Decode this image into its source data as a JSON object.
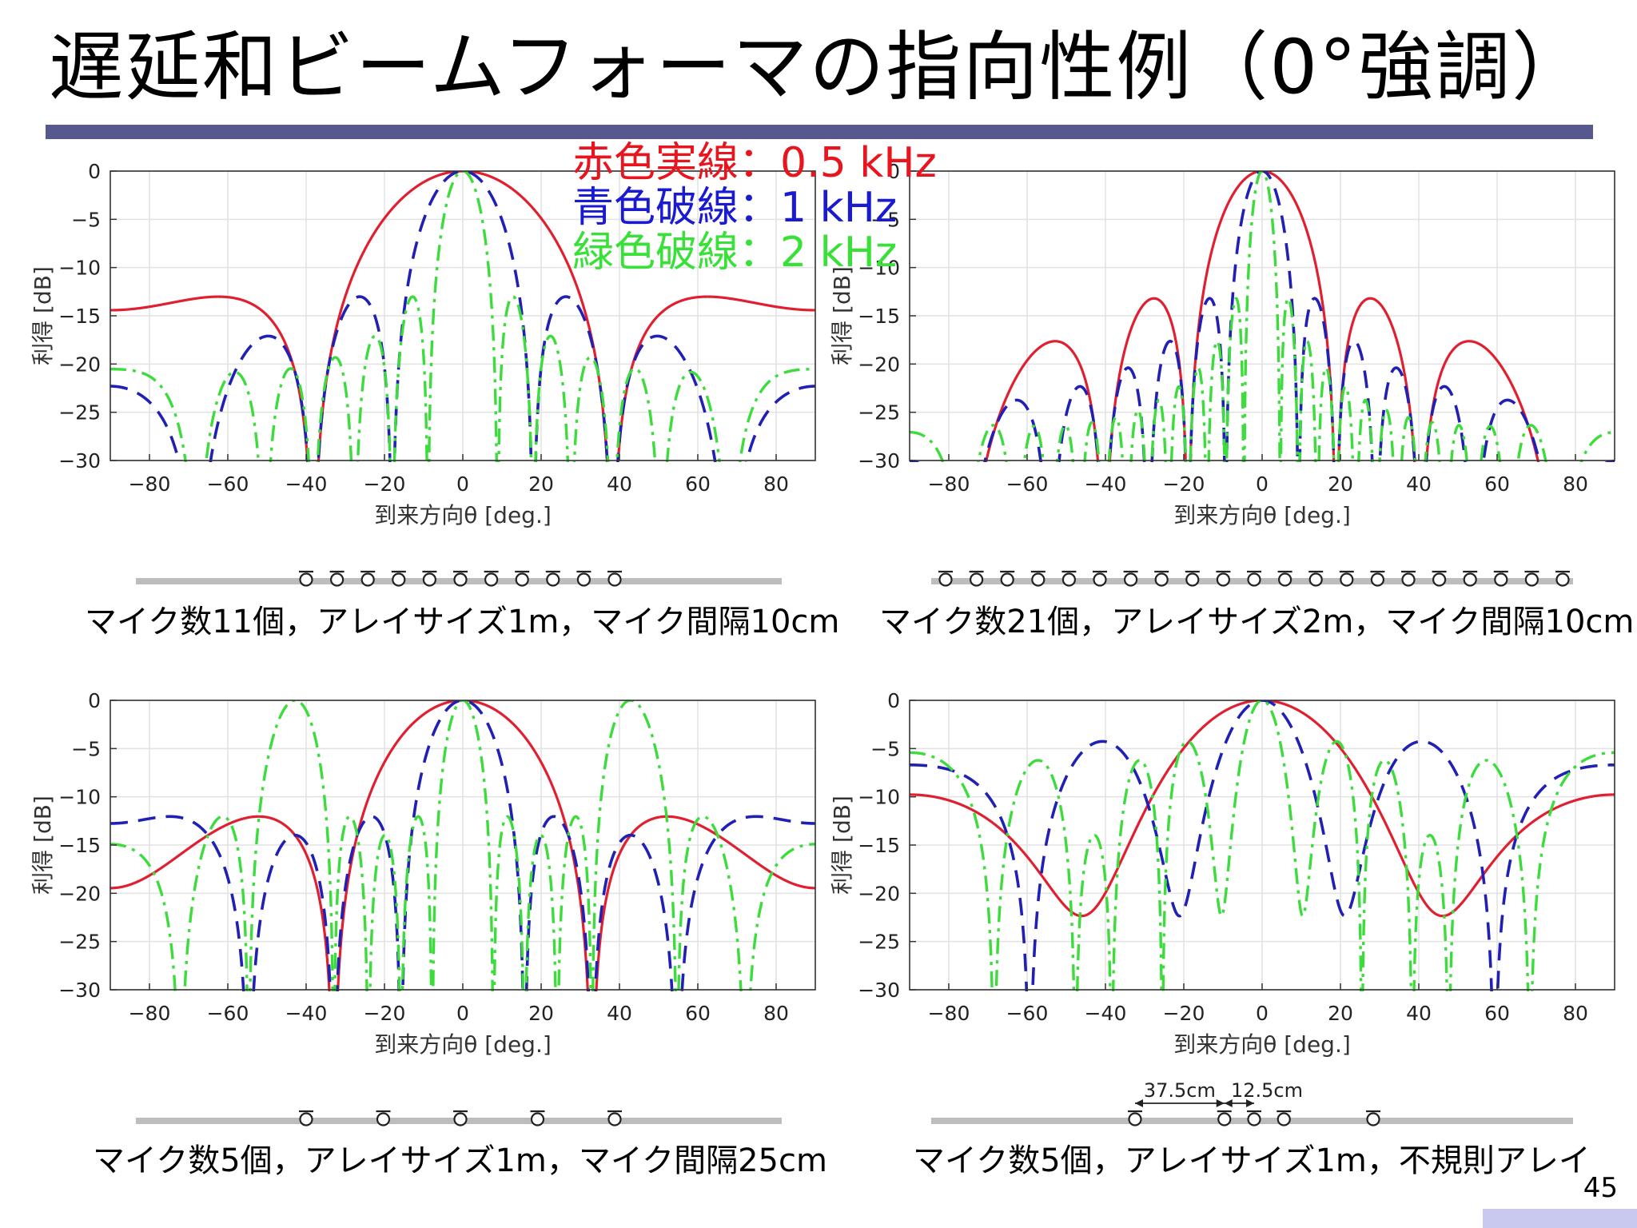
{
  "slide": {
    "title": "遅延和ビームフォーマの指向性例（0°強調）",
    "page_number": "45",
    "legend": [
      {
        "text": "赤色実線：0.5 kHz",
        "color": "#e8141e"
      },
      {
        "text": "青色破線：1 kHz",
        "color": "#1a1ad0"
      },
      {
        "text": "緑色破線：2 kHz",
        "color": "#38e038"
      }
    ]
  },
  "colors": {
    "accent_bar": "#56588e",
    "red": "#e02030",
    "blue": "#2020b4",
    "green": "#3cdc3c",
    "corner": "#c9c9f0"
  },
  "chart_data": [
    {
      "type": "line",
      "xlabel": "到来方向θ [deg.]",
      "ylabel": "利得 [dB]",
      "xlim": [
        -90,
        90
      ],
      "ylim": [
        -30,
        0
      ],
      "xticks": [
        "-80",
        "-60",
        "-40",
        "-20",
        "0",
        "20",
        "40",
        "60",
        "80"
      ],
      "yticks": [
        "0",
        "-5",
        "-10",
        "-15",
        "-20",
        "-25",
        "-30"
      ],
      "grid": true,
      "array": {
        "type": "uniform",
        "mics": 11,
        "spacing_m": 0.1
      },
      "mic_positions_m": [
        -0.5,
        -0.4,
        -0.3,
        -0.2,
        -0.1,
        0,
        0.1,
        0.2,
        0.3,
        0.4,
        0.5
      ],
      "series": [
        {
          "frequency_hz": 500,
          "style": "solid red"
        },
        {
          "frequency_hz": 1000,
          "style": "dashed blue"
        },
        {
          "frequency_hz": 2000,
          "style": "dash-dot green"
        }
      ],
      "caption": "マイク数11個，アレイサイズ1m，マイク間隔10cm"
    },
    {
      "type": "line",
      "xlabel": "到来方向θ [deg.]",
      "ylabel": "利得 [dB]",
      "xlim": [
        -90,
        90
      ],
      "ylim": [
        -30,
        0
      ],
      "xticks": [
        "-80",
        "-60",
        "-40",
        "-20",
        "0",
        "20",
        "40",
        "60",
        "80"
      ],
      "yticks": [
        "0",
        "-5",
        "-10",
        "-15",
        "-20",
        "-25",
        "-30"
      ],
      "grid": true,
      "array": {
        "type": "uniform",
        "mics": 21,
        "spacing_m": 0.1
      },
      "mic_positions_m": [
        -1.0,
        -0.9,
        -0.8,
        -0.7,
        -0.6,
        -0.5,
        -0.4,
        -0.3,
        -0.2,
        -0.1,
        0,
        0.1,
        0.2,
        0.3,
        0.4,
        0.5,
        0.6,
        0.7,
        0.8,
        0.9,
        1.0
      ],
      "series": [
        {
          "frequency_hz": 500,
          "style": "solid red"
        },
        {
          "frequency_hz": 1000,
          "style": "dashed blue"
        },
        {
          "frequency_hz": 2000,
          "style": "dash-dot green"
        }
      ],
      "caption": "マイク数21個，アレイサイズ2m，マイク間隔10cm"
    },
    {
      "type": "line",
      "xlabel": "到来方向θ [deg.]",
      "ylabel": "利得 [dB]",
      "xlim": [
        -90,
        90
      ],
      "ylim": [
        -30,
        0
      ],
      "xticks": [
        "-80",
        "-60",
        "-40",
        "-20",
        "0",
        "20",
        "40",
        "60",
        "80"
      ],
      "yticks": [
        "0",
        "-5",
        "-10",
        "-15",
        "-20",
        "-25",
        "-30"
      ],
      "grid": true,
      "array": {
        "type": "uniform",
        "mics": 5,
        "spacing_m": 0.25
      },
      "mic_positions_m": [
        -0.5,
        -0.25,
        0,
        0.25,
        0.5
      ],
      "series": [
        {
          "frequency_hz": 500,
          "style": "solid red"
        },
        {
          "frequency_hz": 1000,
          "style": "dashed blue"
        },
        {
          "frequency_hz": 2000,
          "style": "dash-dot green"
        }
      ],
      "caption": "マイク数5個，アレイサイズ1m，マイク間隔25cm"
    },
    {
      "type": "line",
      "xlabel": "到来方向θ [deg.]",
      "ylabel": "利得 [dB]",
      "xlim": [
        -90,
        90
      ],
      "ylim": [
        -30,
        0
      ],
      "xticks": [
        "-80",
        "-60",
        "-40",
        "-20",
        "0",
        "20",
        "40",
        "60",
        "80"
      ],
      "yticks": [
        "0",
        "-5",
        "-10",
        "-15",
        "-20",
        "-25",
        "-30"
      ],
      "grid": true,
      "array": {
        "type": "irregular",
        "mics": 5
      },
      "mic_positions_m": [
        -0.5,
        -0.125,
        0,
        0.125,
        0.5
      ],
      "dimension_labels": [
        "37.5cm",
        "12.5cm"
      ],
      "series": [
        {
          "frequency_hz": 500,
          "style": "solid red"
        },
        {
          "frequency_hz": 1000,
          "style": "dashed blue"
        },
        {
          "frequency_hz": 2000,
          "style": "dash-dot green"
        }
      ],
      "caption": "マイク数5個，アレイサイズ1m，不規則アレイ"
    }
  ]
}
